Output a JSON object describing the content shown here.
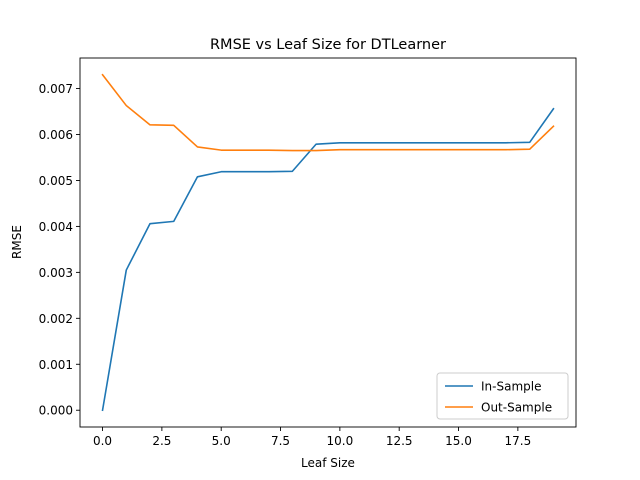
{
  "chart_data": {
    "type": "line",
    "title": "RMSE vs Leaf Size for DTLearner",
    "xlabel": "Leaf Size",
    "ylabel": "RMSE",
    "xlim": [
      -0.95,
      19.95
    ],
    "ylim": [
      -0.000365,
      0.007665
    ],
    "x_ticks": [
      0.0,
      2.5,
      5.0,
      7.5,
      10.0,
      12.5,
      15.0,
      17.5
    ],
    "x_tick_labels": [
      "0.0",
      "2.5",
      "5.0",
      "7.5",
      "10.0",
      "12.5",
      "15.0",
      "17.5"
    ],
    "y_ticks": [
      0.0,
      0.001,
      0.002,
      0.003,
      0.004,
      0.005,
      0.006,
      0.007
    ],
    "y_tick_labels": [
      "0.000",
      "0.001",
      "0.002",
      "0.003",
      "0.004",
      "0.005",
      "0.006",
      "0.007"
    ],
    "grid": false,
    "legend_position": "lower-right",
    "x": [
      0,
      1,
      2,
      3,
      4,
      5,
      6,
      7,
      8,
      9,
      10,
      11,
      12,
      13,
      14,
      15,
      16,
      17,
      18,
      19
    ],
    "series": [
      {
        "name": "In-Sample",
        "color": "#1f77b4",
        "values": [
          0.0,
          0.00305,
          0.00406,
          0.00411,
          0.00508,
          0.00519,
          0.00519,
          0.00519,
          0.0052,
          0.00579,
          0.00582,
          0.00582,
          0.00582,
          0.00582,
          0.00582,
          0.00582,
          0.00582,
          0.00582,
          0.00583,
          0.00656
        ]
      },
      {
        "name": "Out-Sample",
        "color": "#ff7f0e",
        "values": [
          0.0073,
          0.00663,
          0.00621,
          0.0062,
          0.00573,
          0.00566,
          0.00566,
          0.00566,
          0.00565,
          0.00565,
          0.00567,
          0.00567,
          0.00567,
          0.00567,
          0.00567,
          0.00567,
          0.00567,
          0.00567,
          0.00568,
          0.00618
        ]
      }
    ]
  }
}
